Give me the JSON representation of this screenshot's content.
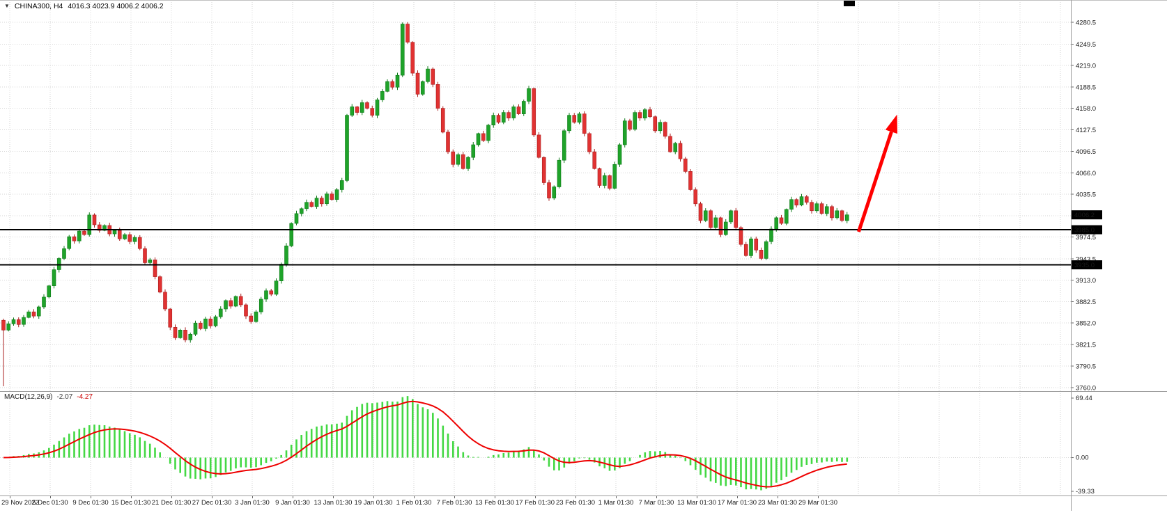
{
  "header": {
    "symbol_period": "CHINA300, H4",
    "ohlc_text": "4016.3 4023.9 4006.2 4006.2"
  },
  "macd": {
    "title": "MACD(12,26,9)",
    "value_main": "-2.07",
    "value_signal": "-4.27"
  },
  "colors": {
    "bull": "#1fa32a",
    "bull_dark": "#0e7a18",
    "bear": "#e13232",
    "bear_dark": "#a81f1f",
    "grid": "#d6d6d6",
    "level": "#000000",
    "macd_hist": "#44d844",
    "macd_signal": "#ee0000",
    "badge_bg": "#000000",
    "badge_fg": "#ffffff"
  },
  "annotation_arrow": {
    "type": "arrow",
    "color": "#ff0000",
    "from": {
      "index": 169.3,
      "price": 3982
    },
    "to": {
      "index": 176.9,
      "price": 4149
    }
  },
  "chart_data": {
    "type": "candlestick",
    "symbol": "CHINA300",
    "timeframe": "H4",
    "ylim": [
      3757,
      4305
    ],
    "first_open": 3856,
    "first_low": 3762,
    "closes": [
      3842,
      3851,
      3857,
      3850,
      3860,
      3868,
      3862,
      3875,
      3889,
      3905,
      3928,
      3944,
      3958,
      3975,
      3969,
      3983,
      3978,
      4006,
      3992,
      3984,
      3991,
      3979,
      3984,
      3972,
      3978,
      3968,
      3974,
      3958,
      3938,
      3942,
      3918,
      3896,
      3872,
      3846,
      3831,
      3842,
      3828,
      3836,
      3852,
      3844,
      3858,
      3848,
      3861,
      3872,
      3884,
      3876,
      3890,
      3878,
      3862,
      3854,
      3868,
      3886,
      3898,
      3893,
      3912,
      3936,
      3962,
      3994,
      4008,
      4015,
      4024,
      4018,
      4030,
      4022,
      4036,
      4028,
      4042,
      4055,
      4148,
      4160,
      4152,
      4166,
      4158,
      4148,
      4170,
      4182,
      4196,
      4188,
      4205,
      4278,
      4252,
      4208,
      4178,
      4196,
      4214,
      4192,
      4158,
      4124,
      4096,
      4078,
      4092,
      4072,
      4088,
      4106,
      4122,
      4112,
      4134,
      4148,
      4138,
      4152,
      4144,
      4160,
      4150,
      4168,
      4186,
      4120,
      4088,
      4052,
      4030,
      4046,
      4084,
      4126,
      4148,
      4138,
      4150,
      4122,
      4096,
      4072,
      4048,
      4062,
      4044,
      4078,
      4106,
      4140,
      4128,
      4152,
      4144,
      4156,
      4146,
      4126,
      4138,
      4118,
      4096,
      4108,
      4086,
      4068,
      4042,
      4022,
      3998,
      4012,
      3988,
      4002,
      3978,
      3996,
      4012,
      3988,
      3964,
      3948,
      3972,
      3956,
      3944,
      3968,
      3986,
      4002,
      3994,
      4014,
      4028,
      4020,
      4032,
      4024,
      4012,
      4022,
      4008,
      4018,
      4002,
      4012,
      3998,
      4006.2
    ],
    "price_ticks": [
      {
        "label": "4280.5",
        "value": 4280.5
      },
      {
        "label": "4249.5",
        "value": 4249.5
      },
      {
        "label": "4219.0",
        "value": 4219.0
      },
      {
        "label": "4188.5",
        "value": 4188.5
      },
      {
        "label": "4158.0",
        "value": 4158.0
      },
      {
        "label": "4127.5",
        "value": 4127.5
      },
      {
        "label": "4096.5",
        "value": 4096.5
      },
      {
        "label": "4066.0",
        "value": 4066.0
      },
      {
        "label": "4035.5",
        "value": 4035.5
      },
      {
        "label": "",
        "value": 4005.0
      },
      {
        "label": "3974.5",
        "value": 3974.5
      },
      {
        "label": "3943.5",
        "value": 3943.5
      },
      {
        "label": "3913.0",
        "value": 3913.0
      },
      {
        "label": "3882.5",
        "value": 3882.5
      },
      {
        "label": "3852.0",
        "value": 3852.0
      },
      {
        "label": "3821.5",
        "value": 3821.5
      },
      {
        "label": "3790.5",
        "value": 3790.5
      },
      {
        "label": "3760.0",
        "value": 3760.0
      }
    ],
    "bid": {
      "price": 4006.2,
      "label": "4006.2"
    },
    "levels": [
      {
        "price": 3985.0,
        "label": "3985.0"
      },
      {
        "price": 3935.0,
        "label": "3935.0"
      }
    ],
    "x_labels": [
      "29 Nov 2022",
      "5 Dec 01:30",
      "9 Dec 01:30",
      "15 Dec 01:30",
      "21 Dec 01:30",
      "27 Dec 01:30",
      "3 Jan 01:30",
      "9 Jan 01:30",
      "13 Jan 01:30",
      "19 Jan 01:30",
      "1 Feb 01:30",
      "7 Feb 01:30",
      "13 Feb 01:30",
      "17 Feb 01:30",
      "23 Feb 01:30",
      "1 Mar 01:30",
      "7 Mar 01:30",
      "13 Mar 01:30",
      "17 Mar 01:30",
      "23 Mar 01:30",
      "29 Mar 01:30"
    ],
    "indicator": {
      "type": "macd",
      "fast": 12,
      "slow": 26,
      "signal": 9,
      "last_main": -2.07,
      "last_signal": -4.27,
      "ylim": [
        -39.33,
        69.44
      ],
      "axis_labels": [
        "69.44",
        "0.00",
        "-39.33"
      ]
    }
  }
}
